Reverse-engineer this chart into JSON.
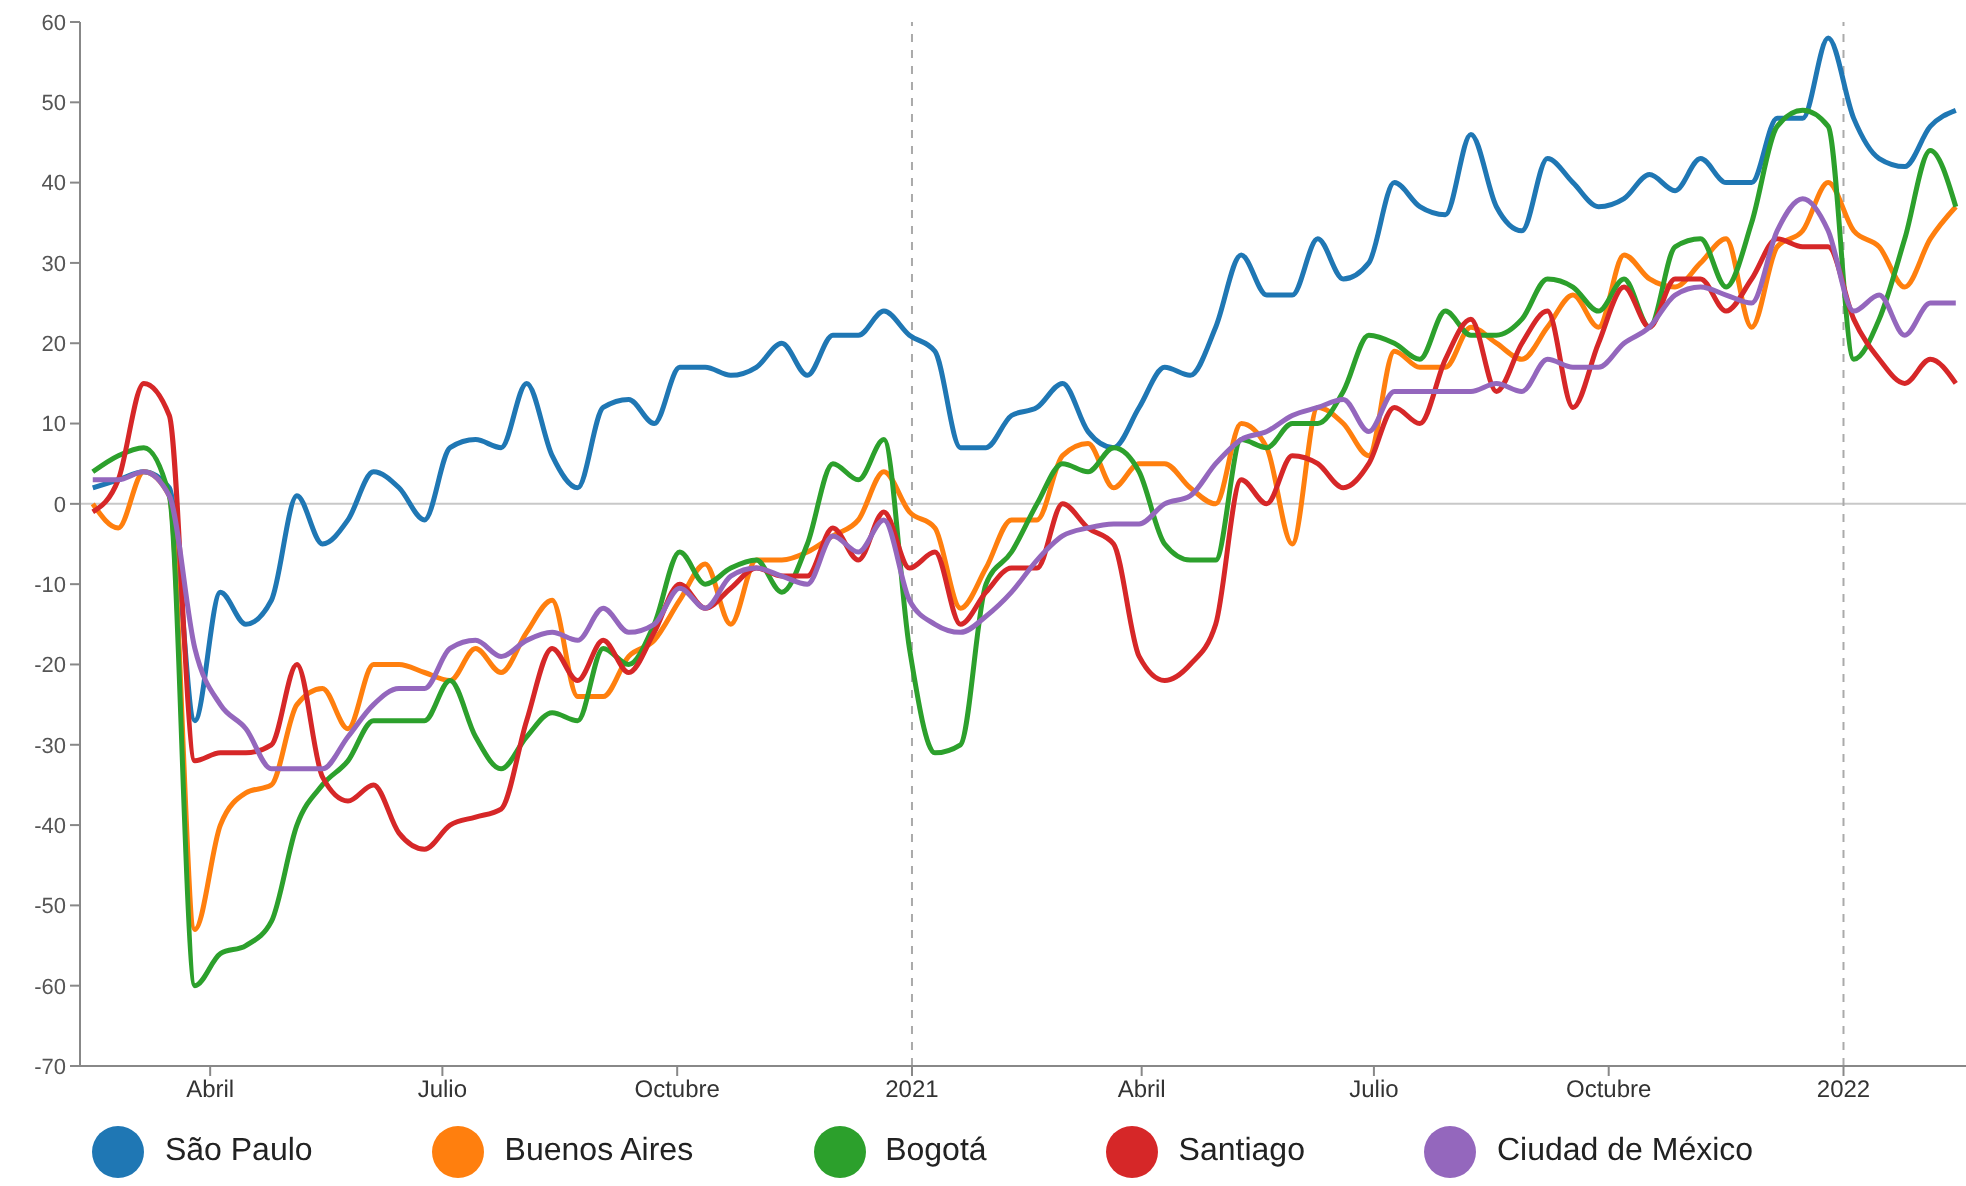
{
  "chart_data": {
    "type": "line",
    "x": [
      "2020-02-15",
      "2020-02-25",
      "2020-03-06",
      "2020-03-16",
      "2020-03-26",
      "2020-04-05",
      "2020-04-15",
      "2020-04-25",
      "2020-05-05",
      "2020-05-15",
      "2020-05-25",
      "2020-06-04",
      "2020-06-14",
      "2020-06-24",
      "2020-07-04",
      "2020-07-14",
      "2020-07-24",
      "2020-08-03",
      "2020-08-13",
      "2020-08-23",
      "2020-09-02",
      "2020-09-12",
      "2020-09-22",
      "2020-10-02",
      "2020-10-12",
      "2020-10-22",
      "2020-11-01",
      "2020-11-11",
      "2020-11-21",
      "2020-12-01",
      "2020-12-11",
      "2020-12-21",
      "2020-12-31",
      "2021-01-10",
      "2021-01-20",
      "2021-01-30",
      "2021-02-09",
      "2021-02-19",
      "2021-03-01",
      "2021-03-11",
      "2021-03-21",
      "2021-03-31",
      "2021-04-10",
      "2021-04-20",
      "2021-04-30",
      "2021-05-10",
      "2021-05-20",
      "2021-05-30",
      "2021-06-09",
      "2021-06-19",
      "2021-06-29",
      "2021-07-09",
      "2021-07-19",
      "2021-07-29",
      "2021-08-08",
      "2021-08-18",
      "2021-08-28",
      "2021-09-07",
      "2021-09-17",
      "2021-09-27",
      "2021-10-07",
      "2021-10-17",
      "2021-10-27",
      "2021-11-06",
      "2021-11-16",
      "2021-11-26",
      "2021-12-06",
      "2021-12-16",
      "2021-12-26",
      "2022-01-05",
      "2022-01-15",
      "2022-01-25",
      "2022-02-04",
      "2022-02-14"
    ],
    "series": [
      {
        "name": "São Paulo",
        "color": "#1f77b4",
        "values": [
          2,
          3,
          4,
          2,
          -27,
          -11,
          -15,
          -12,
          1,
          -5,
          -2,
          4,
          2,
          -2,
          7,
          8,
          7,
          15,
          6,
          2,
          12,
          13,
          10,
          17,
          17,
          16,
          17,
          20,
          16,
          21,
          21,
          24,
          21,
          19,
          7,
          7,
          11,
          12,
          15,
          9,
          7,
          12,
          17,
          16,
          22,
          31,
          26,
          26,
          33,
          28,
          30,
          40,
          37,
          36,
          46,
          37,
          34,
          43,
          40,
          37,
          38,
          41,
          39,
          43,
          40,
          40,
          48,
          48,
          58,
          48,
          43,
          42,
          47,
          49
        ]
      },
      {
        "name": "Buenos Aires",
        "color": "#ff7f0e",
        "values": [
          0,
          -3,
          4,
          1,
          -53,
          -40,
          -36,
          -35,
          -25,
          -23,
          -28,
          -20,
          -20,
          -21,
          -22,
          -18,
          -21,
          -16,
          -12,
          -24,
          -24,
          -19,
          -17,
          -12,
          -7.5,
          -15,
          -7,
          -7,
          -6,
          -4,
          -2,
          4,
          -1,
          -3,
          -13,
          -8,
          -2,
          -2,
          6,
          7.5,
          2,
          5,
          5,
          2,
          0,
          10,
          7,
          -5,
          12,
          10,
          6,
          19,
          17,
          17,
          22,
          20,
          18,
          22,
          26,
          22,
          31,
          28,
          27,
          30,
          33,
          22,
          32,
          34,
          40,
          34,
          32,
          27,
          33,
          37
        ]
      },
      {
        "name": "Bogotá",
        "color": "#2ca02c",
        "values": [
          4,
          6,
          7,
          1,
          -60,
          -56,
          -55,
          -52,
          -40,
          -35,
          -32,
          -27,
          -27,
          -27,
          -22,
          -29,
          -33,
          -29,
          -26,
          -27,
          -18,
          -20,
          -15,
          -6,
          -10,
          -8,
          -7,
          -11,
          -5,
          5,
          3,
          8,
          -18,
          -31,
          -30,
          -10,
          -6,
          0,
          5,
          4,
          7,
          4,
          -5,
          -7,
          -7,
          8,
          7,
          10,
          10,
          14,
          21,
          20,
          18,
          24,
          21,
          21,
          23,
          28,
          27,
          24,
          28,
          22,
          32,
          33,
          27,
          35,
          47,
          49,
          47,
          18,
          23,
          33,
          44,
          37
        ]
      },
      {
        "name": "Santiago",
        "color": "#d62728",
        "values": [
          -1,
          3,
          15,
          11,
          -32,
          -31,
          -31,
          -30,
          -20,
          -34,
          -37,
          -35,
          -41,
          -43,
          -40,
          -39,
          -38,
          -27,
          -18,
          -22,
          -17,
          -21,
          -16,
          -10,
          -13,
          -10.5,
          -8,
          -9,
          -9,
          -3,
          -7,
          -1,
          -8,
          -6,
          -15,
          -11,
          -8,
          -8,
          0,
          -3,
          -5,
          -19,
          -22,
          -20,
          -15,
          3,
          0,
          6,
          5,
          2,
          5,
          12,
          10,
          18,
          23,
          14,
          20,
          24,
          12,
          20,
          27,
          22,
          28,
          28,
          24,
          28,
          33,
          32,
          32,
          23,
          18,
          15,
          18,
          15
        ]
      },
      {
        "name": "Ciudad de México",
        "color": "#9467bd",
        "values": [
          3,
          3,
          4,
          1,
          -18,
          -25,
          -28,
          -33,
          -33,
          -33,
          -29,
          -25,
          -23,
          -23,
          -18,
          -17,
          -19,
          -17,
          -16,
          -17,
          -13,
          -16,
          -15,
          -10.5,
          -13,
          -9,
          -8,
          -9,
          -10,
          -4,
          -6,
          -2,
          -12,
          -15,
          -16,
          -14,
          -11,
          -7,
          -4,
          -3,
          -2.5,
          -2.5,
          0,
          1,
          5,
          8,
          9,
          11,
          12,
          13,
          9,
          14,
          14,
          14,
          14,
          15,
          14,
          18,
          17,
          17,
          20,
          22,
          26,
          27,
          26,
          25,
          34,
          38,
          34,
          24,
          26,
          21,
          25,
          25
        ]
      }
    ],
    "xlim": [
      "2020-02-10",
      "2022-02-18"
    ],
    "xticks": [
      {
        "value": "2020-04-01",
        "label": "Abril"
      },
      {
        "value": "2020-07-01",
        "label": "Julio"
      },
      {
        "value": "2020-10-01",
        "label": "Octubre"
      },
      {
        "value": "2021-01-01",
        "label": "2021"
      },
      {
        "value": "2021-04-01",
        "label": "Abril"
      },
      {
        "value": "2021-07-01",
        "label": "Julio"
      },
      {
        "value": "2021-10-01",
        "label": "Octubre"
      },
      {
        "value": "2022-01-01",
        "label": "2022"
      }
    ],
    "ylim": [
      -70,
      60
    ],
    "yticks": [
      -70,
      -60,
      -50,
      -40,
      -30,
      -20,
      -10,
      0,
      10,
      20,
      30,
      40,
      50,
      60
    ],
    "ref_lines": [
      {
        "axis": "y",
        "value": 0,
        "color": "#c8c8c8",
        "line_style": "solid"
      },
      {
        "axis": "x",
        "value": "2021-01-01",
        "color": "#aaaaaa",
        "line_style": "dashed"
      },
      {
        "axis": "x",
        "value": "2022-01-01",
        "color": "#aaaaaa",
        "line_style": "dashed"
      }
    ],
    "grid": false,
    "legend": "bottom"
  }
}
